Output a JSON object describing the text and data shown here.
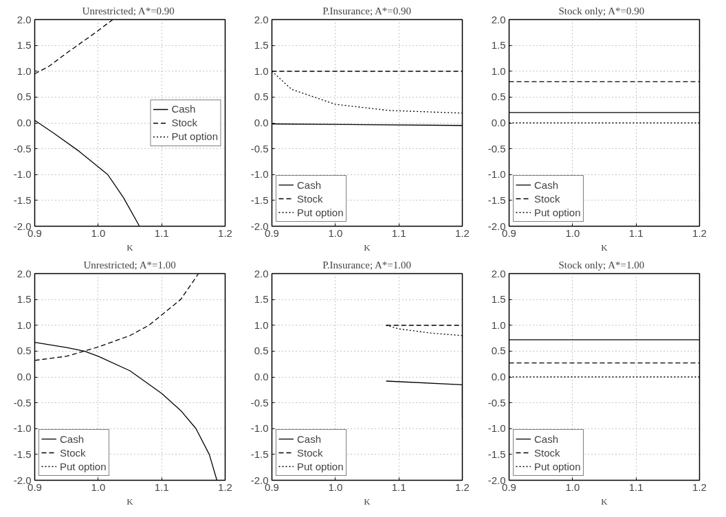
{
  "chart_data": [
    {
      "type": "line",
      "title": "Unrestricted;  A*=0.90",
      "xlabel": "K",
      "xlim": [
        0.9,
        1.2
      ],
      "ylim": [
        -2.0,
        2.0
      ],
      "xticks": [
        {
          "value": 0.9,
          "label": "0.9"
        },
        {
          "value": 1.0,
          "label": "1.0"
        },
        {
          "value": 1.1,
          "label": "1.1"
        },
        {
          "value": 1.2,
          "label": "1.2"
        }
      ],
      "yticks": [
        {
          "value": -2.0,
          "label": "-2.0"
        },
        {
          "value": -1.5,
          "label": "-1.5"
        },
        {
          "value": -1.0,
          "label": "-1.0"
        },
        {
          "value": -0.5,
          "label": "-0.5"
        },
        {
          "value": 0.0,
          "label": "0.0"
        },
        {
          "value": 0.5,
          "label": "0.5"
        },
        {
          "value": 1.0,
          "label": "1.0"
        },
        {
          "value": 1.5,
          "label": "1.5"
        },
        {
          "value": 2.0,
          "label": "2.0"
        }
      ],
      "grid": true,
      "legend": "right",
      "series": [
        {
          "name": "Cash",
          "color": "#000000",
          "line_style": "solid",
          "x": [
            0.9,
            0.93,
            0.97,
            1.0,
            1.015,
            1.04,
            1.065
          ],
          "values": [
            0.05,
            -0.2,
            -0.55,
            -0.85,
            -1.0,
            -1.45,
            -2.0
          ]
        },
        {
          "name": "Stock",
          "color": "#000000",
          "line_style": "dashed",
          "x": [
            0.9,
            0.923,
            0.95,
            0.996,
            1.023
          ],
          "values": [
            0.95,
            1.1,
            1.35,
            1.75,
            2.0
          ]
        },
        {
          "name": "Put option",
          "color": "#000000",
          "line_style": "dotted"
        }
      ]
    },
    {
      "type": "line",
      "title": "P.Insurance; A*=0.90",
      "xlabel": "K",
      "xlim": [
        0.9,
        1.2
      ],
      "ylim": [
        -2.0,
        2.0
      ],
      "xticks": [
        {
          "value": 0.9,
          "label": "0.9"
        },
        {
          "value": 1.0,
          "label": "1.0"
        },
        {
          "value": 1.1,
          "label": "1.1"
        },
        {
          "value": 1.2,
          "label": "1.2"
        }
      ],
      "yticks": [
        {
          "value": -2.0,
          "label": "-2.0"
        },
        {
          "value": -1.5,
          "label": "-1.5"
        },
        {
          "value": -1.0,
          "label": "-1.0"
        },
        {
          "value": -0.5,
          "label": "-0.5"
        },
        {
          "value": 0.0,
          "label": "0.0"
        },
        {
          "value": 0.5,
          "label": "0.5"
        },
        {
          "value": 1.0,
          "label": "1.0"
        },
        {
          "value": 1.5,
          "label": "1.5"
        },
        {
          "value": 2.0,
          "label": "2.0"
        }
      ],
      "grid": true,
      "legend": "bottom left",
      "series": [
        {
          "name": "Cash",
          "color": "#000000",
          "line_style": "solid",
          "x": [
            0.9,
            1.2
          ],
          "values": [
            -0.02,
            -0.05
          ]
        },
        {
          "name": "Stock",
          "color": "#000000",
          "line_style": "dashed",
          "x": [
            0.9,
            1.2
          ],
          "values": [
            1.0,
            1.0
          ]
        },
        {
          "name": "Put option",
          "color": "#000000",
          "line_style": "dotted",
          "x": [
            0.9,
            0.931,
            1.0,
            1.085,
            1.2
          ],
          "values": [
            1.0,
            0.65,
            0.36,
            0.24,
            0.19
          ]
        }
      ]
    },
    {
      "type": "line",
      "title": "Stock  only;  A*=0.90",
      "xlabel": "K",
      "xlim": [
        0.9,
        1.2
      ],
      "ylim": [
        -2.0,
        2.0
      ],
      "xticks": [
        {
          "value": 0.9,
          "label": "0.9"
        },
        {
          "value": 1.0,
          "label": "1.0"
        },
        {
          "value": 1.1,
          "label": "1.1"
        },
        {
          "value": 1.2,
          "label": "1.2"
        }
      ],
      "yticks": [
        {
          "value": -2.0,
          "label": "-2.0"
        },
        {
          "value": -1.5,
          "label": "-1.5"
        },
        {
          "value": -1.0,
          "label": "-1.0"
        },
        {
          "value": -0.5,
          "label": "-0.5"
        },
        {
          "value": 0.0,
          "label": "0.0"
        },
        {
          "value": 0.5,
          "label": "0.5"
        },
        {
          "value": 1.0,
          "label": "1.0"
        },
        {
          "value": 1.5,
          "label": "1.5"
        },
        {
          "value": 2.0,
          "label": "2.0"
        }
      ],
      "grid": true,
      "legend": "bottom left",
      "series": [
        {
          "name": "Cash",
          "color": "#000000",
          "line_style": "solid",
          "x": [
            0.9,
            1.2
          ],
          "values": [
            0.2,
            0.2
          ]
        },
        {
          "name": "Stock",
          "color": "#000000",
          "line_style": "dashed",
          "x": [
            0.9,
            1.2
          ],
          "values": [
            0.8,
            0.8
          ]
        },
        {
          "name": "Put option",
          "color": "#000000",
          "line_style": "dotted",
          "x": [
            0.9,
            1.2
          ],
          "values": [
            0.0,
            0.0
          ]
        }
      ]
    },
    {
      "type": "line",
      "title": "Unrestricted; A*=1.00",
      "xlabel": "K",
      "xlim": [
        0.9,
        1.2
      ],
      "ylim": [
        -2.0,
        2.0
      ],
      "xticks": [
        {
          "value": 0.9,
          "label": "0.9"
        },
        {
          "value": 1.0,
          "label": "1.0"
        },
        {
          "value": 1.1,
          "label": "1.1"
        },
        {
          "value": 1.2,
          "label": "1.2"
        }
      ],
      "yticks": [
        {
          "value": -2.0,
          "label": "-2.0"
        },
        {
          "value": -1.5,
          "label": "-1.5"
        },
        {
          "value": -1.0,
          "label": "-1.0"
        },
        {
          "value": -0.5,
          "label": "-0.5"
        },
        {
          "value": 0.0,
          "label": "0.0"
        },
        {
          "value": 0.5,
          "label": "0.5"
        },
        {
          "value": 1.0,
          "label": "1.0"
        },
        {
          "value": 1.5,
          "label": "1.5"
        },
        {
          "value": 2.0,
          "label": "2.0"
        }
      ],
      "grid": true,
      "legend": "bottom left",
      "series": [
        {
          "name": "Cash",
          "color": "#000000",
          "line_style": "solid",
          "x": [
            0.9,
            0.95,
            0.978,
            1.0,
            1.05,
            1.1,
            1.13,
            1.154,
            1.175,
            1.187
          ],
          "values": [
            0.67,
            0.57,
            0.5,
            0.4,
            0.12,
            -0.32,
            -0.65,
            -1.0,
            -1.5,
            -2.0
          ]
        },
        {
          "name": "Stock",
          "color": "#000000",
          "line_style": "dashed",
          "x": [
            0.9,
            0.95,
            0.978,
            1.0,
            1.05,
            1.08,
            1.1,
            1.13,
            1.158
          ],
          "values": [
            0.32,
            0.4,
            0.5,
            0.58,
            0.8,
            1.0,
            1.2,
            1.5,
            2.0
          ]
        },
        {
          "name": "Put option",
          "color": "#000000",
          "line_style": "dotted"
        }
      ]
    },
    {
      "type": "line",
      "title": "P.Insurance; A*=1.00",
      "xlabel": "K",
      "xlim": [
        0.9,
        1.2
      ],
      "ylim": [
        -2.0,
        2.0
      ],
      "xticks": [
        {
          "value": 0.9,
          "label": "0.9"
        },
        {
          "value": 1.0,
          "label": "1.0"
        },
        {
          "value": 1.1,
          "label": "1.1"
        },
        {
          "value": 1.2,
          "label": "1.2"
        }
      ],
      "yticks": [
        {
          "value": -2.0,
          "label": "-2.0"
        },
        {
          "value": -1.5,
          "label": "-1.5"
        },
        {
          "value": -1.0,
          "label": "-1.0"
        },
        {
          "value": -0.5,
          "label": "-0.5"
        },
        {
          "value": 0.0,
          "label": "0.0"
        },
        {
          "value": 0.5,
          "label": "0.5"
        },
        {
          "value": 1.0,
          "label": "1.0"
        },
        {
          "value": 1.5,
          "label": "1.5"
        },
        {
          "value": 2.0,
          "label": "2.0"
        }
      ],
      "grid": true,
      "legend": "bottom left",
      "series": [
        {
          "name": "Cash",
          "color": "#000000",
          "line_style": "solid",
          "x": [
            1.08,
            1.2,
            1.2
          ],
          "values": [
            -0.08,
            -0.15,
            -0.8
          ]
        },
        {
          "name": "Stock",
          "color": "#000000",
          "line_style": "dashed",
          "x": [
            1.08,
            1.2
          ],
          "values": [
            1.0,
            1.0
          ]
        },
        {
          "name": "Put option",
          "color": "#000000",
          "line_style": "dotted",
          "x": [
            1.08,
            1.1,
            1.15,
            1.2
          ],
          "values": [
            1.0,
            0.93,
            0.85,
            0.8
          ]
        }
      ]
    },
    {
      "type": "line",
      "title": "Stock  only;  A*=1.00",
      "xlabel": "K",
      "xlim": [
        0.9,
        1.2
      ],
      "ylim": [
        -2.0,
        2.0
      ],
      "xticks": [
        {
          "value": 0.9,
          "label": "0.9"
        },
        {
          "value": 1.0,
          "label": "1.0"
        },
        {
          "value": 1.1,
          "label": "1.1"
        },
        {
          "value": 1.2,
          "label": "1.2"
        }
      ],
      "yticks": [
        {
          "value": -2.0,
          "label": "-2.0"
        },
        {
          "value": -1.5,
          "label": "-1.5"
        },
        {
          "value": -1.0,
          "label": "-1.0"
        },
        {
          "value": -0.5,
          "label": "-0.5"
        },
        {
          "value": 0.0,
          "label": "0.0"
        },
        {
          "value": 0.5,
          "label": "0.5"
        },
        {
          "value": 1.0,
          "label": "1.0"
        },
        {
          "value": 1.5,
          "label": "1.5"
        },
        {
          "value": 2.0,
          "label": "2.0"
        }
      ],
      "grid": true,
      "legend": "bottom left",
      "series": [
        {
          "name": "Cash",
          "color": "#000000",
          "line_style": "solid",
          "x": [
            0.9,
            1.2
          ],
          "values": [
            0.72,
            0.72
          ]
        },
        {
          "name": "Stock",
          "color": "#000000",
          "line_style": "dashed",
          "x": [
            0.9,
            1.2
          ],
          "values": [
            0.27,
            0.27
          ]
        },
        {
          "name": "Put option",
          "color": "#000000",
          "line_style": "dotted",
          "x": [
            0.9,
            1.2
          ],
          "values": [
            0.0,
            0.0
          ]
        }
      ]
    }
  ]
}
